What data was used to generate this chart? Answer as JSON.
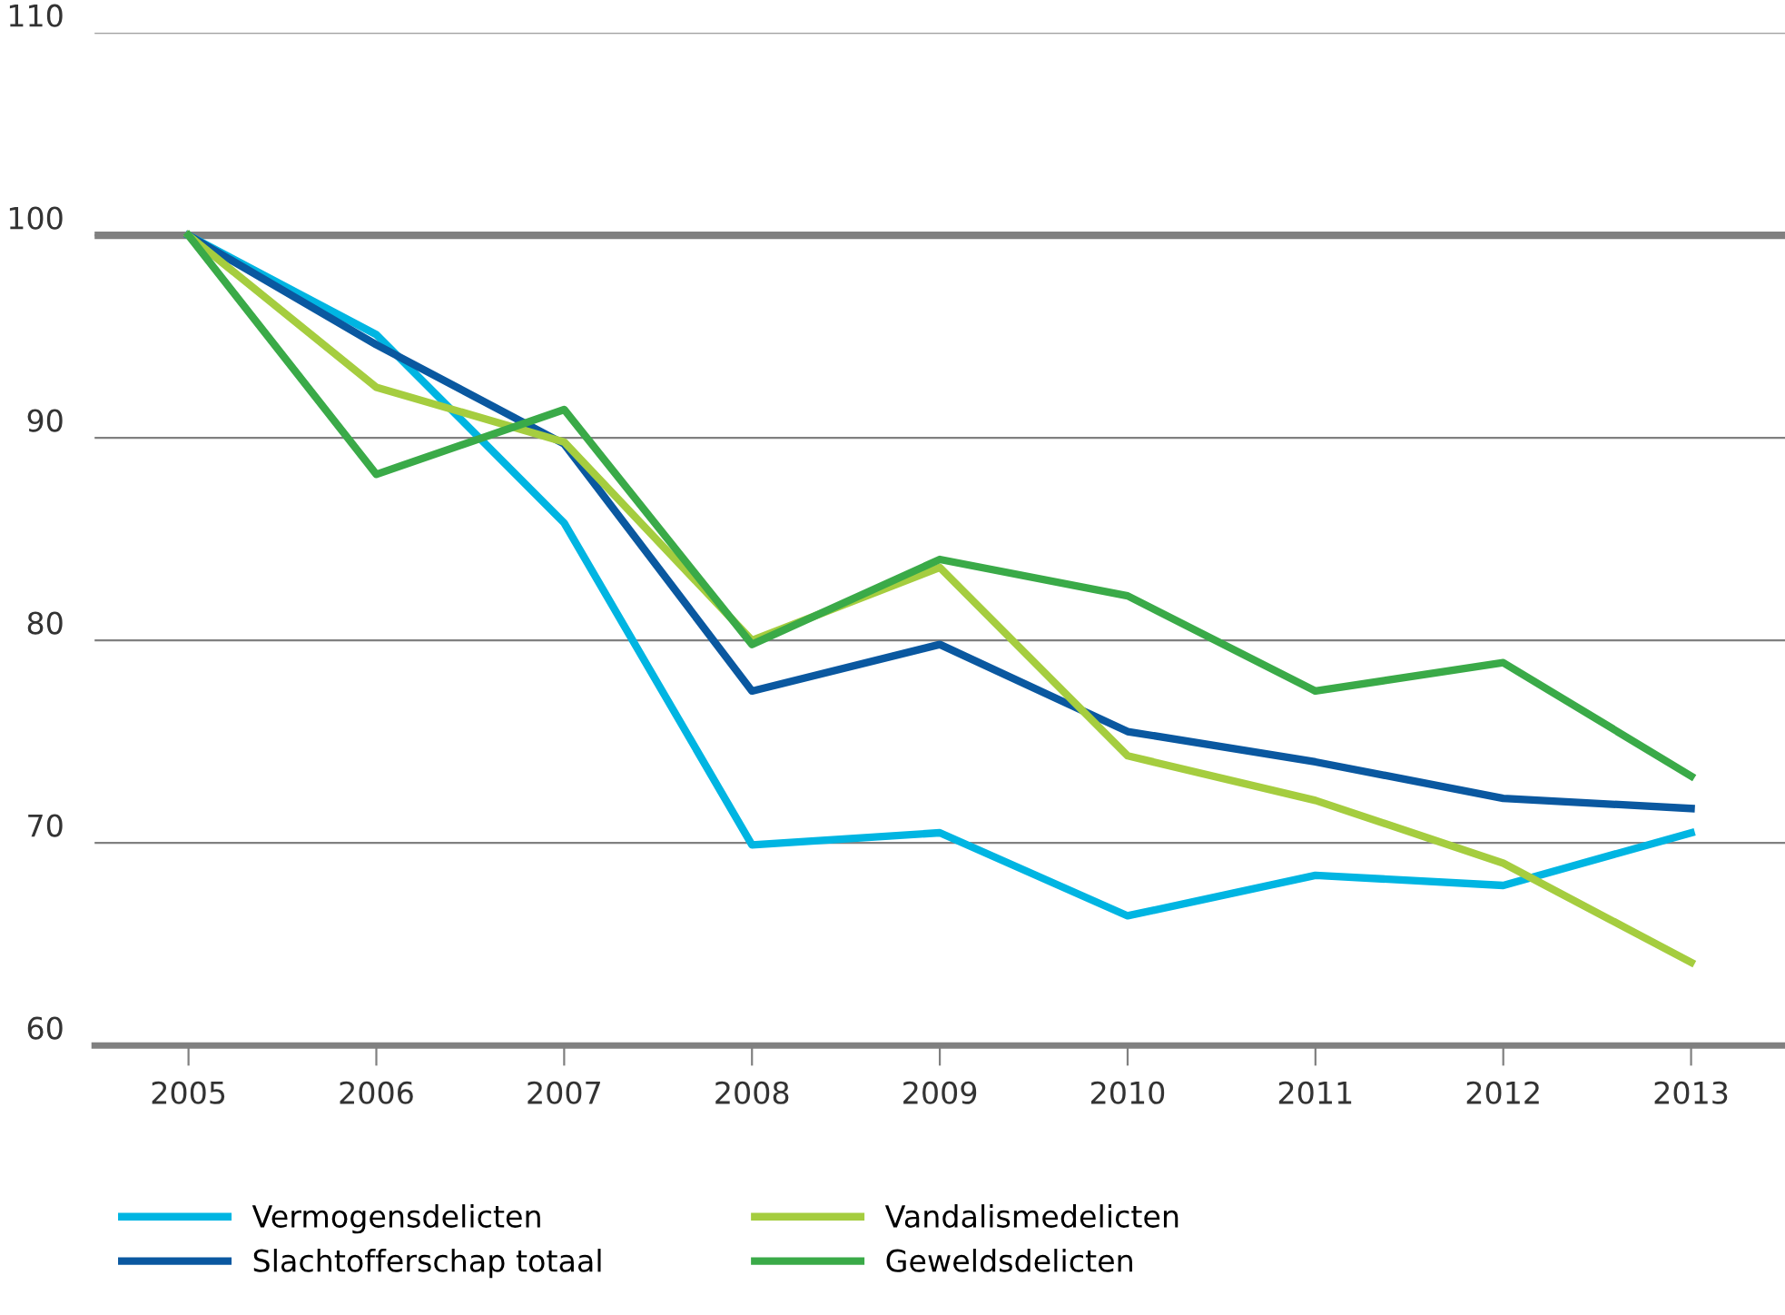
{
  "chart_data": {
    "type": "line",
    "categories": [
      "2005",
      "2006",
      "2007",
      "2008",
      "2009",
      "2010",
      "2011",
      "2012",
      "2013"
    ],
    "series": [
      {
        "name": "Vermogensdelicten",
        "color": "#00b5e2",
        "values": [
          100,
          95.1,
          85.8,
          69.9,
          70.5,
          66.4,
          68.4,
          67.9,
          70.5
        ]
      },
      {
        "name": "Slachtofferschap totaal",
        "color": "#0a58a0",
        "values": [
          100,
          94.6,
          89.7,
          77.5,
          79.8,
          75.5,
          74.0,
          72.2,
          71.7
        ]
      },
      {
        "name": "Vandalismedelicten",
        "color": "#a5cd3f",
        "values": [
          100,
          92.5,
          89.8,
          80.0,
          83.6,
          74.3,
          72.1,
          69.0,
          64.1
        ]
      },
      {
        "name": "Geweldsdelicten",
        "color": "#3aaa48",
        "values": [
          100,
          88.2,
          91.4,
          79.8,
          84.0,
          82.2,
          77.5,
          78.9,
          73.3
        ]
      }
    ],
    "ylim": [
      60,
      110
    ],
    "yticks": [
      60,
      70,
      80,
      90,
      100,
      110
    ],
    "grid": "y",
    "legend": "bottom",
    "marker": "none",
    "line_style": "solid",
    "ref_lines": [
      {
        "axis": "y",
        "value": 100,
        "color": "#808080"
      }
    ]
  }
}
